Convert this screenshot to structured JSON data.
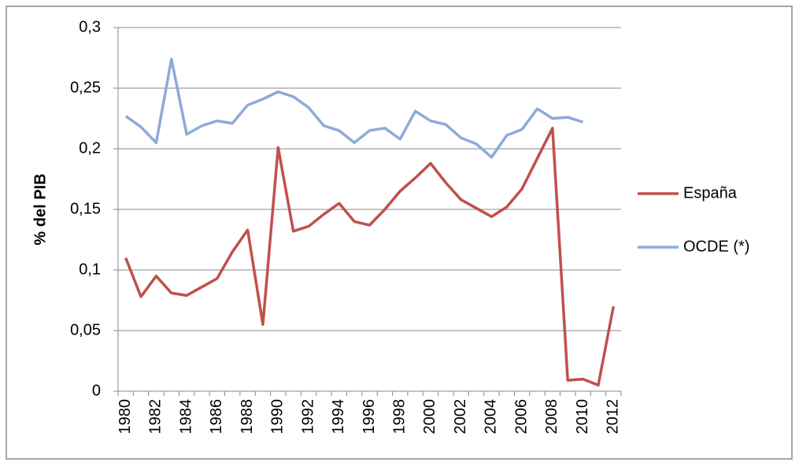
{
  "chart_data": {
    "type": "line",
    "y_label": "% del PIB",
    "categories": [
      "1980",
      null,
      "1982",
      null,
      "1984",
      null,
      "1986",
      null,
      "1988",
      null,
      "1990",
      null,
      "1992",
      null,
      "1994",
      null,
      "1996",
      null,
      "1998",
      null,
      "2000",
      null,
      "2002",
      null,
      "2004",
      null,
      "2006",
      null,
      "2008",
      null,
      "2010",
      null,
      "2012"
    ],
    "series": [
      {
        "name": "España",
        "color": "#c0504d",
        "values": [
          0.11,
          0.078,
          0.095,
          0.081,
          0.079,
          0.086,
          0.093,
          0.115,
          0.133,
          0.055,
          0.201,
          0.132,
          0.136,
          0.146,
          0.155,
          0.14,
          0.137,
          0.15,
          0.165,
          0.176,
          0.188,
          0.172,
          0.158,
          0.151,
          0.144,
          0.152,
          0.167,
          0.192,
          0.217,
          0.009,
          0.01,
          0.005,
          0.07
        ]
      },
      {
        "name": "OCDE (*)",
        "color": "#8eaadb",
        "values": [
          0.227,
          0.218,
          0.205,
          0.274,
          0.212,
          0.219,
          0.223,
          0.221,
          0.236,
          0.241,
          0.247,
          0.243,
          0.234,
          0.219,
          0.215,
          0.205,
          0.215,
          0.217,
          0.208,
          0.231,
          0.223,
          0.22,
          0.209,
          0.204,
          0.193,
          0.211,
          0.216,
          0.233,
          0.225,
          0.226,
          0.222,
          null,
          null
        ]
      }
    ],
    "ylim": [
      0,
      0.3
    ],
    "yticks": [
      0,
      {
        "value": 0.05,
        "label": "0,05"
      },
      {
        "value": 0.1,
        "label": "0,1"
      },
      {
        "value": 0.15,
        "label": "0,15"
      },
      {
        "value": 0.2,
        "label": "0,2"
      },
      {
        "value": 0.25,
        "label": "0,25"
      },
      {
        "value": 0.3,
        "label": "0,3"
      }
    ],
    "grid": true,
    "legend": "right"
  }
}
